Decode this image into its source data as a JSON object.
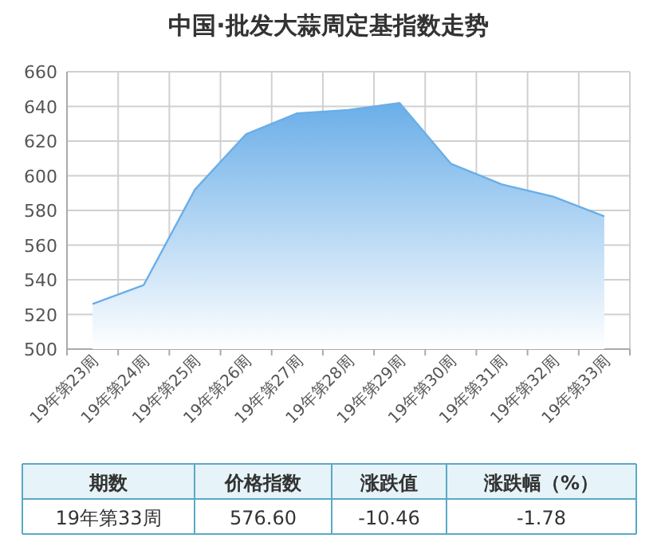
{
  "chart_data": [
    {
      "type": "area",
      "title": "中国·批发大蒜周定基指数走势",
      "categories": [
        "19年第23周",
        "19年第24周",
        "19年第25周",
        "19年第26周",
        "19年第27周",
        "19年第28周",
        "19年第29周",
        "19年第30周",
        "19年第31周",
        "19年第32周",
        "19年第33周"
      ],
      "values": [
        526,
        537,
        592,
        624,
        636,
        638,
        642,
        607,
        595,
        588,
        576.6
      ],
      "color": "#6aaee8",
      "ylim": [
        500,
        660
      ],
      "yticks": [
        500,
        520,
        540,
        560,
        580,
        600,
        620,
        640,
        660
      ],
      "grid": true
    },
    {
      "type": "other",
      "annotations": [
        "期数",
        "价格指数",
        "涨跌值",
        "涨跌幅（%）",
        "19年第33周",
        "576.60",
        "-10.46",
        "-1.78"
      ]
    }
  ]
}
